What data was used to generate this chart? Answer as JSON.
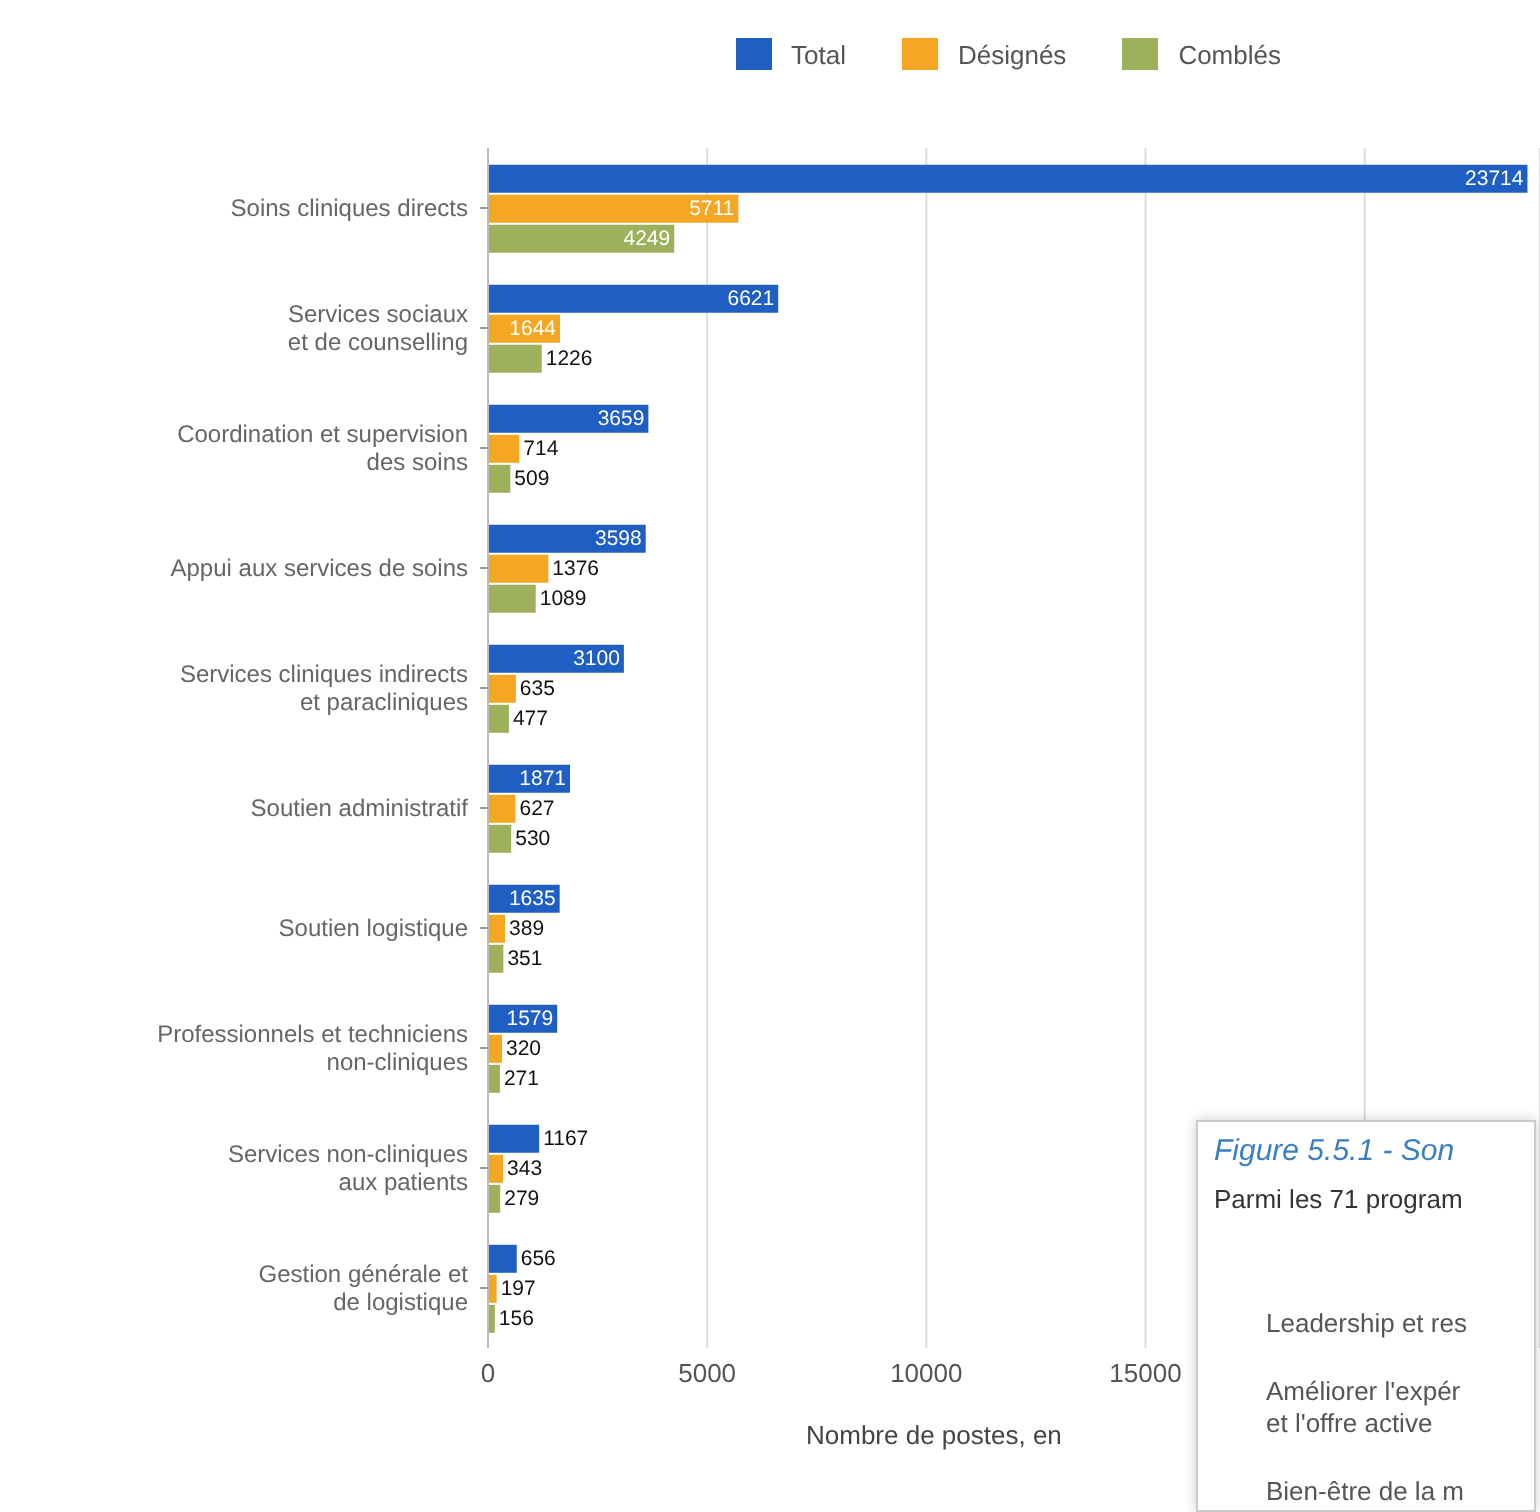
{
  "chart_data": [
    {
      "type": "bar",
      "orientation": "horizontal",
      "xlabel": "Nombre de postes, en",
      "categories": [
        "Soins cliniques directs",
        "Services sociaux\net de counselling",
        "Coordination et supervision\ndes soins",
        "Appui aux services de soins",
        "Services cliniques indirects\net paracliniques",
        "Soutien administratif",
        "Soutien logistique",
        "Professionnels et techniciens\nnon-cliniques",
        "Services non-cliniques\naux patients",
        "Gestion générale et\nde logistique"
      ],
      "series": [
        {
          "name": "Total",
          "color": "#1f5fc4",
          "values": [
            23714,
            6621,
            3659,
            3598,
            3100,
            1871,
            1635,
            1579,
            1167,
            656
          ]
        },
        {
          "name": "Désignés",
          "color": "#f5a623",
          "values": [
            5711,
            1644,
            714,
            1376,
            635,
            627,
            389,
            320,
            343,
            197
          ]
        },
        {
          "name": "Comblés",
          "color": "#9fb05c",
          "values": [
            4249,
            1226,
            509,
            1089,
            477,
            530,
            351,
            271,
            279,
            156
          ]
        }
      ],
      "xlim": [
        0,
        24000
      ],
      "xticks": [
        0,
        5000,
        10000,
        15000,
        {
          "value": 20000,
          "label": null
        }
      ],
      "grid": "x",
      "legend": "top",
      "data_labels": true
    },
    {
      "type": "other",
      "title": "Figure 5.5.1 - Son",
      "annotations": [
        "Parmi les 71 program",
        "Leadership et res",
        "Améliorer l'expér\net l'offre active",
        "Bien-être de la m"
      ]
    }
  ]
}
